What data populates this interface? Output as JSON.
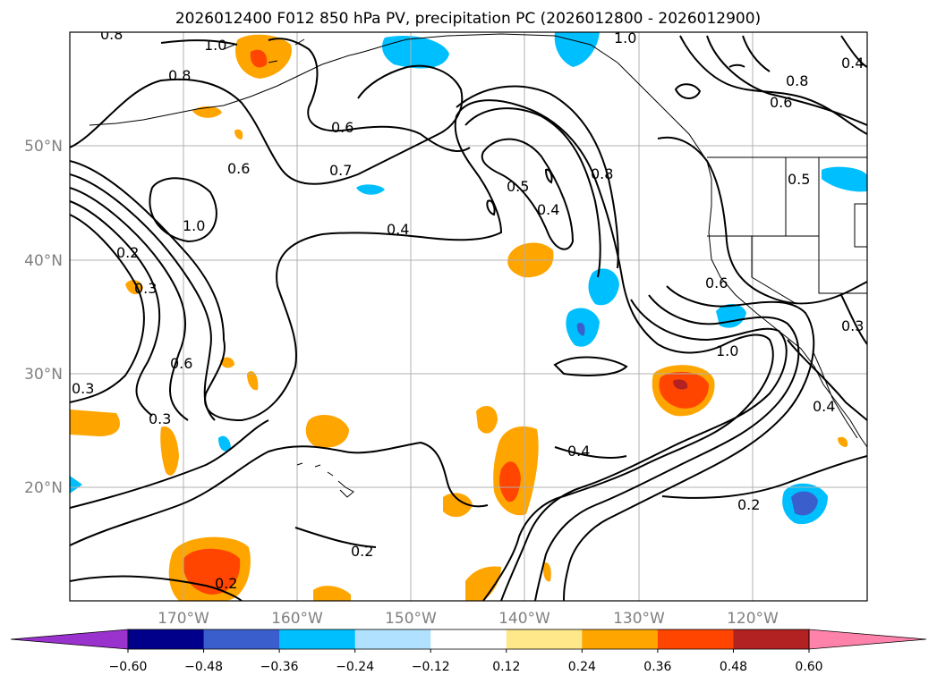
{
  "title": "2026012400 F012 850 hPa PV, precipitation PC (2026012800 - 2026012900)",
  "latitude_labels": [
    "50°N",
    "40°N",
    "30°N",
    "20°N"
  ],
  "longitude_labels": [
    "170°W",
    "160°W",
    "150°W",
    "140°W",
    "130°W",
    "120°W"
  ],
  "colorbar": {
    "tick_labels": [
      "−0.60",
      "−0.48",
      "−0.36",
      "−0.24",
      "−0.12",
      "0.12",
      "0.24",
      "0.36",
      "0.48",
      "0.60"
    ],
    "colors": [
      "#9a32cd",
      "#00008b",
      "#3a5fcd",
      "#00bfff",
      "#b0e2ff",
      "#ffffff",
      "#ffe88a",
      "#ffa500",
      "#ff4500",
      "#b22222",
      "#ff82ab"
    ]
  },
  "contour_labels": [
    "0.8",
    "1.0",
    "0.8",
    "0.6",
    "0.6",
    "0.7",
    "1.0",
    "0.2",
    "0.3",
    "0.4",
    "0.5",
    "0.4",
    "0.8",
    "1.0",
    "0.8",
    "0.6",
    "0.5",
    "0.6",
    "0.3",
    "0.3",
    "0.6",
    "0.3",
    "0.4",
    "1.0",
    "0.4",
    "0.2",
    "0.2",
    "0.2",
    "0.4"
  ],
  "fill_colors": {
    "orange": "#ffa500",
    "red": "#ff4500",
    "darkred": "#b22222",
    "yellow": "#ffe88a",
    "skyblue": "#00bfff",
    "royal": "#3a5fcd",
    "lightblue": "#b0e2ff"
  }
}
